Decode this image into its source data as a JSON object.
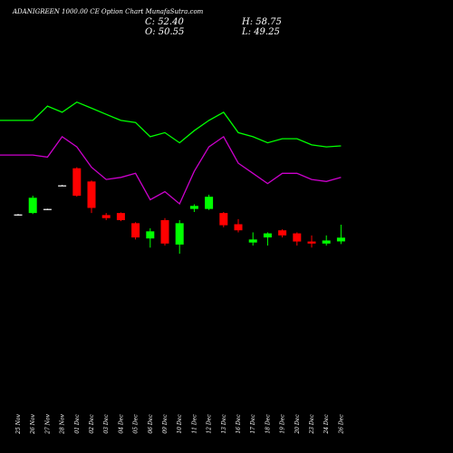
{
  "header": {
    "title": "ADANIGREEN 1000.00 CE Option Chart MunafaSutra.com",
    "close": "C: 52.40",
    "open": "O: 50.55",
    "high": "H: 58.75",
    "low": "L: 49.25"
  },
  "chart_data": {
    "type": "candlestick",
    "title": "ADANIGREEN 1000.00 CE Option Chart MunafaSutra.com",
    "categories": [
      "25 Nov",
      "26 Nov",
      "27 Nov",
      "28 Nov",
      "01 Dec",
      "02 Dec",
      "03 Dec",
      "04 Dec",
      "05 Dec",
      "06 Dec",
      "09 Dec",
      "10 Dec",
      "11 Dec",
      "12 Dec",
      "13 Dec",
      "16 Dec",
      "17 Dec",
      "18 Dec",
      "19 Dec",
      "20 Dec",
      "23 Dec",
      "24 Dec",
      "26 Dec"
    ],
    "colors": {
      "up": "#00ff00",
      "down": "#ff0000",
      "doji": "#ffffff",
      "upper_line": "#00ff00",
      "lower_line": "#cc00cc"
    },
    "candles": [
      {
        "date": "25 Nov",
        "open": 63.5,
        "high": 64.0,
        "low": 63.2,
        "close": 63.8,
        "color": "doji"
      },
      {
        "date": "26 Nov",
        "open": 64.5,
        "high": 73.0,
        "low": 64.0,
        "close": 72.0,
        "color": "up"
      },
      {
        "date": "27 Nov",
        "open": 66.3,
        "high": 66.6,
        "low": 66.0,
        "close": 66.5,
        "color": "doji"
      },
      {
        "date": "28 Nov",
        "open": 78.0,
        "high": 78.3,
        "low": 77.8,
        "close": 78.1,
        "color": "doji"
      },
      {
        "date": "01 Dec",
        "open": 86.5,
        "high": 87.0,
        "low": 72.5,
        "close": 73.0,
        "color": "down"
      },
      {
        "date": "02 Dec",
        "open": 80.0,
        "high": 80.5,
        "low": 64.5,
        "close": 67.0,
        "color": "down"
      },
      {
        "date": "03 Dec",
        "open": 63.5,
        "high": 64.5,
        "low": 61.0,
        "close": 62.0,
        "color": "down"
      },
      {
        "date": "04 Dec",
        "open": 64.5,
        "high": 64.8,
        "low": 60.5,
        "close": 61.0,
        "color": "down"
      },
      {
        "date": "05 Dec",
        "open": 59.5,
        "high": 60.0,
        "low": 51.5,
        "close": 52.5,
        "color": "down"
      },
      {
        "date": "06 Dec",
        "open": 52.0,
        "high": 57.0,
        "low": 47.5,
        "close": 55.5,
        "color": "up"
      },
      {
        "date": "09 Dec",
        "open": 61.0,
        "high": 62.0,
        "low": 48.5,
        "close": 49.5,
        "color": "down"
      },
      {
        "date": "10 Dec",
        "open": 49.0,
        "high": 61.0,
        "low": 44.5,
        "close": 59.5,
        "color": "up"
      },
      {
        "date": "11 Dec",
        "open": 68.0,
        "high": 68.8,
        "low": 65.0,
        "close": 66.5,
        "color": "up"
      },
      {
        "date": "12 Dec",
        "open": 66.5,
        "high": 73.5,
        "low": 66.0,
        "close": 72.5,
        "color": "up"
      },
      {
        "date": "13 Dec",
        "open": 64.5,
        "high": 65.0,
        "low": 57.5,
        "close": 58.5,
        "color": "down"
      },
      {
        "date": "16 Dec",
        "open": 59.0,
        "high": 61.5,
        "low": 55.0,
        "close": 56.0,
        "color": "down"
      },
      {
        "date": "17 Dec",
        "open": 50.0,
        "high": 55.0,
        "low": 48.5,
        "close": 51.5,
        "color": "up"
      },
      {
        "date": "18 Dec",
        "open": 52.5,
        "high": 55.0,
        "low": 48.5,
        "close": 54.5,
        "color": "up"
      },
      {
        "date": "19 Dec",
        "open": 56.0,
        "high": 56.5,
        "low": 52.5,
        "close": 53.5,
        "color": "down"
      },
      {
        "date": "20 Dec",
        "open": 54.5,
        "high": 55.0,
        "low": 48.5,
        "close": 50.5,
        "color": "down"
      },
      {
        "date": "23 Dec",
        "open": 50.5,
        "high": 53.5,
        "low": 47.5,
        "close": 49.5,
        "color": "down"
      },
      {
        "date": "24 Dec",
        "open": 49.5,
        "high": 53.5,
        "low": 48.5,
        "close": 51.0,
        "color": "up"
      },
      {
        "date": "26 Dec",
        "open": 50.55,
        "high": 58.75,
        "low": 49.25,
        "close": 52.4,
        "color": "up"
      }
    ],
    "upper_line": [
      110,
      110,
      117,
      114,
      119,
      116,
      113,
      110,
      109,
      102,
      104,
      99,
      105,
      110,
      114,
      104,
      102,
      99,
      101,
      101,
      98,
      97,
      97.5
    ],
    "lower_line": [
      93,
      93,
      92,
      102,
      97,
      87,
      81,
      82,
      84,
      71,
      75,
      69,
      85,
      97,
      102,
      89,
      84,
      79,
      84,
      84,
      81,
      80,
      82
    ],
    "ylim": [
      0,
      130
    ],
    "grid": false,
    "legend": "none"
  }
}
